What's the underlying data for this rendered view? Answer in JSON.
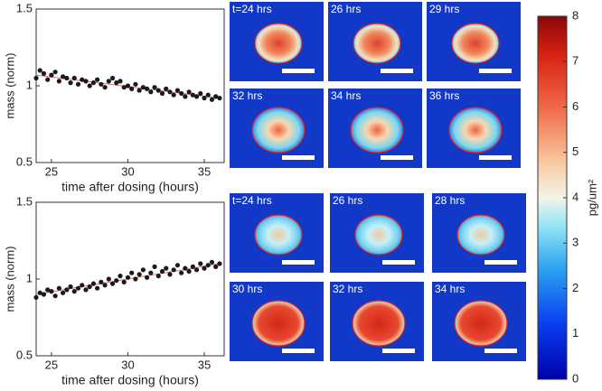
{
  "chart_data": [
    {
      "type": "scatter",
      "xlabel": "time after dosing (hours)",
      "ylabel": "mass (norm)",
      "x": [
        24,
        24.25,
        24.5,
        24.75,
        25,
        25.25,
        25.5,
        25.75,
        26,
        26.25,
        26.5,
        26.75,
        27,
        27.25,
        27.5,
        27.75,
        28,
        28.25,
        28.5,
        28.75,
        29,
        29.25,
        29.5,
        29.75,
        30,
        30.25,
        30.5,
        30.75,
        31,
        31.25,
        31.5,
        31.75,
        32,
        32.25,
        32.5,
        32.75,
        33,
        33.25,
        33.5,
        33.75,
        34,
        34.25,
        34.5,
        34.75,
        35,
        35.25,
        35.5,
        35.75,
        36
      ],
      "values": [
        1.05,
        1.1,
        1.08,
        1.04,
        1.07,
        1.09,
        1.03,
        1.06,
        1.05,
        1.02,
        1.05,
        1.01,
        1.04,
        1.03,
        1.0,
        1.02,
        1.04,
        1.01,
        0.99,
        1.03,
        1.05,
        1.02,
        1.03,
        0.99,
        1.0,
        0.98,
        1.01,
        0.97,
        0.99,
        0.98,
        0.96,
        0.99,
        0.97,
        0.95,
        0.98,
        0.96,
        0.94,
        0.97,
        0.95,
        0.93,
        0.96,
        0.94,
        0.93,
        0.95,
        0.92,
        0.94,
        0.91,
        0.93,
        0.92
      ],
      "color": "#1a1a1a",
      "fit": {
        "x": [
          24,
          36
        ],
        "values": [
          1.07,
          0.92
        ],
        "color": "#e06a6a"
      },
      "xlim": [
        24,
        36.3
      ],
      "xticks": [
        25,
        30,
        35
      ],
      "ylim": [
        0.5,
        1.5
      ],
      "yticks": [
        0.5,
        1,
        1.5
      ]
    },
    {
      "type": "scatter",
      "xlabel": "time after dosing (hours)",
      "ylabel": "mass (norm)",
      "x": [
        24,
        24.25,
        24.5,
        24.75,
        25,
        25.25,
        25.5,
        25.75,
        26,
        26.25,
        26.5,
        26.75,
        27,
        27.25,
        27.5,
        27.75,
        28,
        28.25,
        28.5,
        28.75,
        29,
        29.25,
        29.5,
        29.75,
        30,
        30.25,
        30.5,
        30.75,
        31,
        31.25,
        31.5,
        31.75,
        32,
        32.25,
        32.5,
        32.75,
        33,
        33.25,
        33.5,
        33.75,
        34,
        34.25,
        34.5,
        34.75,
        35,
        35.25,
        35.5,
        35.75,
        36
      ],
      "values": [
        0.88,
        0.91,
        0.9,
        0.93,
        0.92,
        0.89,
        0.94,
        0.91,
        0.93,
        0.95,
        0.92,
        0.94,
        0.96,
        0.93,
        0.95,
        0.97,
        0.94,
        0.98,
        0.96,
        1.0,
        0.97,
        0.99,
        1.02,
        0.98,
        1.01,
        1.04,
        1.0,
        1.03,
        1.06,
        1.01,
        1.04,
        1.08,
        1.02,
        1.05,
        1.07,
        1.03,
        1.06,
        1.09,
        1.04,
        1.07,
        1.05,
        1.08,
        1.06,
        1.1,
        1.07,
        1.09,
        1.11,
        1.08,
        1.1
      ],
      "color": "#1a1a1a",
      "fit": {
        "x": [
          24,
          36
        ],
        "values": [
          0.9,
          1.1
        ],
        "color": "#e06a6a"
      },
      "xlim": [
        24,
        36.3
      ],
      "xticks": [
        25,
        30,
        35
      ],
      "ylim": [
        0.5,
        1.5
      ],
      "yticks": [
        0.5,
        1,
        1.5
      ]
    },
    {
      "type": "colorbar",
      "ylabel": "pg/um²",
      "ylim": [
        0,
        8
      ],
      "yticks": [
        0,
        1,
        2,
        3,
        4,
        5,
        6,
        7,
        8
      ]
    }
  ],
  "image_panels": [
    {
      "labels": [
        "t=24 hrs",
        "26 hrs",
        "29 hrs",
        "32 hrs",
        "34 hrs",
        "36 hrs"
      ]
    },
    {
      "labels": [
        "t=24 hrs",
        "26 hrs",
        "28 hrs",
        "30 hrs",
        "32 hrs",
        "34 hrs"
      ]
    }
  ]
}
